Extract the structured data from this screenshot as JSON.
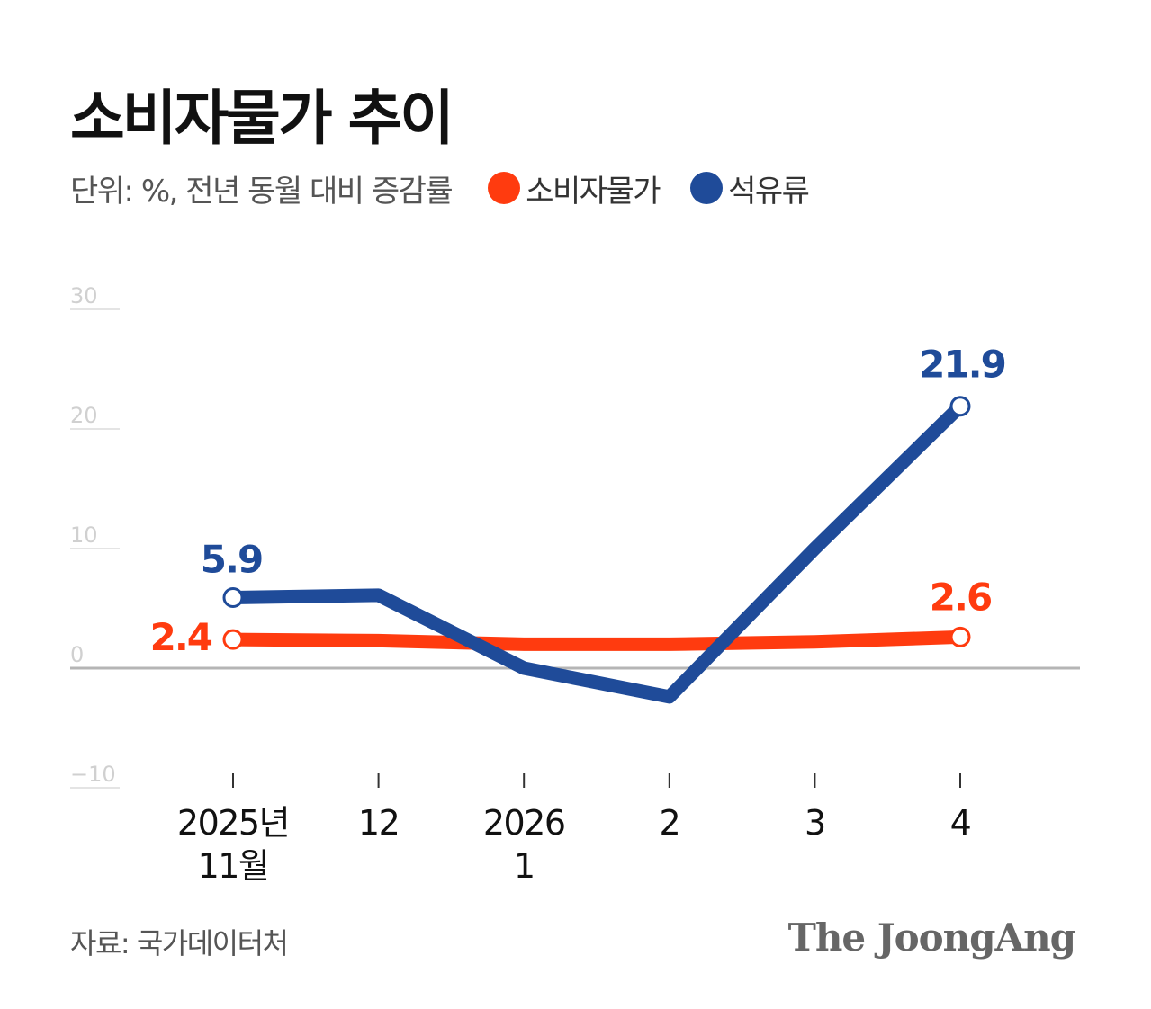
{
  "title": "소비자물가 추이",
  "unit_label": "단위: %, 전년 동월 대비 증감률",
  "source": "자료: 국가데이터처",
  "brand": "The JoongAng",
  "colors": {
    "cpi": "#ff3b0f",
    "petroleum": "#1f4b99",
    "axis_zero": "#b5b5b5",
    "gridline": "#e4e4e4",
    "tick_label": "#d0d0d0"
  },
  "chart_data": {
    "type": "line",
    "x": [
      "2025년 11월",
      "12",
      "2026 1",
      "2",
      "3",
      "4"
    ],
    "x_tick_labels": [
      [
        "2025년",
        "11월"
      ],
      [
        "12"
      ],
      [
        "2026",
        "1"
      ],
      [
        "2"
      ],
      [
        "3"
      ],
      [
        "4"
      ]
    ],
    "y_ticks": [
      30,
      20,
      10,
      0,
      -10
    ],
    "ylim": [
      -10,
      30
    ],
    "grid": true,
    "legend_position": "top",
    "series": [
      {
        "name": "소비자물가",
        "color": "#ff3b0f",
        "values": [
          2.4,
          2.3,
          2.0,
          2.0,
          2.2,
          2.6
        ],
        "labeled_points": [
          {
            "index": 0,
            "label": "2.4"
          },
          {
            "index": 5,
            "label": "2.6"
          }
        ]
      },
      {
        "name": "석유류",
        "color": "#1f4b99",
        "values": [
          5.9,
          6.1,
          0.0,
          -2.4,
          10.0,
          21.9
        ],
        "labeled_points": [
          {
            "index": 0,
            "label": "5.9"
          },
          {
            "index": 5,
            "label": "21.9"
          }
        ]
      }
    ]
  }
}
